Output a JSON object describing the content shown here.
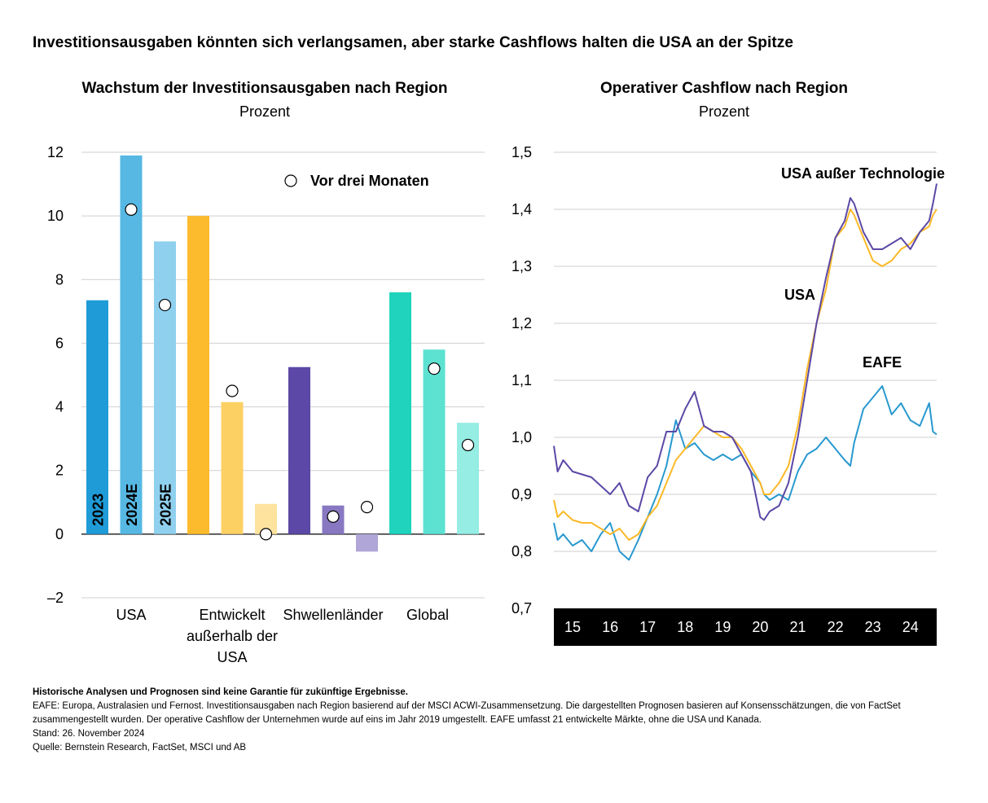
{
  "title": "Investitionsausgaben könnten sich verlangsamen, aber starke Cashflows halten die USA an der Spitze",
  "left_panel": {
    "title": "Wachstum der Investitionsausgaben nach Region",
    "subtitle": "Prozent"
  },
  "right_panel": {
    "title": "Operativer Cashflow nach Region",
    "subtitle": "Prozent"
  },
  "chart_data": [
    {
      "type": "bar",
      "title": "Wachstum der Investitionsausgaben nach Region",
      "subtitle": "Prozent",
      "ylim": [
        -2,
        12
      ],
      "yticks": [
        -2,
        0,
        2,
        4,
        6,
        8,
        10,
        12
      ],
      "ytick_labels": [
        "–2",
        "0",
        "2",
        "4",
        "6",
        "8",
        "10",
        "12"
      ],
      "grid": true,
      "legend": {
        "label": "Vor drei Monaten",
        "position": "top-right"
      },
      "bar_labels": [
        "2023",
        "2024E",
        "2025E"
      ],
      "groups": [
        {
          "label": [
            "USA"
          ],
          "bars": [
            {
              "year": "2023",
              "value": 7.35,
              "color": "#1f9bd7"
            },
            {
              "year": "2024E",
              "value": 11.9,
              "color": "#56b8e3",
              "prior": 10.2
            },
            {
              "year": "2025E",
              "value": 9.2,
              "color": "#8fd0ee",
              "prior": 7.2
            }
          ]
        },
        {
          "label": [
            "Entwickelt",
            "außerhalb der",
            "USA"
          ],
          "bars": [
            {
              "year": "2023",
              "value": 10.0,
              "color": "#fcbb2c"
            },
            {
              "year": "2024E",
              "value": 4.15,
              "color": "#fdd064",
              "prior": 4.5
            },
            {
              "year": "2025E",
              "value": 0.95,
              "color": "#fee39e",
              "prior": 0.0
            }
          ]
        },
        {
          "label": [
            "Shwellenländer"
          ],
          "bars": [
            {
              "year": "2023",
              "value": 5.25,
              "color": "#5c48a6"
            },
            {
              "year": "2024E",
              "value": 0.9,
              "color": "#8878c1",
              "prior": 0.55
            },
            {
              "year": "2025E",
              "value": -0.55,
              "color": "#b0a6d8",
              "prior": 0.85
            }
          ]
        },
        {
          "label": [
            "Global"
          ],
          "bars": [
            {
              "year": "2023",
              "value": 7.6,
              "color": "#1fd3bd"
            },
            {
              "year": "2024E",
              "value": 5.8,
              "color": "#5de2d2",
              "prior": 5.2
            },
            {
              "year": "2025E",
              "value": 3.5,
              "color": "#95ede3",
              "prior": 2.8
            }
          ]
        }
      ]
    },
    {
      "type": "line",
      "title": "Operativer Cashflow nach Region",
      "subtitle": "Prozent",
      "ylim": [
        0.7,
        1.5
      ],
      "yticks": [
        0.7,
        0.8,
        0.9,
        1.0,
        1.1,
        1.2,
        1.3,
        1.4,
        1.5
      ],
      "ytick_labels": [
        "0,7",
        "0,8",
        "0,9",
        "1,0",
        "1,1",
        "1,2",
        "1,3",
        "1,4",
        "1,5"
      ],
      "xlim": [
        2014.5,
        2024.7
      ],
      "xticks": [
        15,
        16,
        17,
        18,
        19,
        20,
        21,
        22,
        23,
        24
      ],
      "grid": true,
      "series": [
        {
          "name": "USA",
          "color": "#fbb928",
          "x": [
            2014.5,
            2014.6,
            2014.75,
            2015.0,
            2015.25,
            2015.5,
            2015.75,
            2016.0,
            2016.25,
            2016.5,
            2016.75,
            2017.0,
            2017.25,
            2017.5,
            2017.75,
            2018.0,
            2018.25,
            2018.5,
            2018.75,
            2019.0,
            2019.25,
            2019.5,
            2019.75,
            2020.0,
            2020.1,
            2020.25,
            2020.5,
            2020.75,
            2021.0,
            2021.25,
            2021.5,
            2021.75,
            2022.0,
            2022.25,
            2022.4,
            2022.5,
            2022.75,
            2023.0,
            2023.25,
            2023.5,
            2023.75,
            2024.0,
            2024.25,
            2024.5,
            2024.6,
            2024.7
          ],
          "y": [
            0.89,
            0.86,
            0.87,
            0.855,
            0.85,
            0.85,
            0.84,
            0.83,
            0.84,
            0.82,
            0.83,
            0.86,
            0.88,
            0.92,
            0.96,
            0.98,
            1.0,
            1.02,
            1.01,
            1.0,
            1.0,
            0.98,
            0.95,
            0.92,
            0.9,
            0.9,
            0.92,
            0.95,
            1.02,
            1.12,
            1.2,
            1.26,
            1.35,
            1.37,
            1.4,
            1.39,
            1.35,
            1.31,
            1.3,
            1.31,
            1.33,
            1.34,
            1.36,
            1.37,
            1.39,
            1.4
          ]
        },
        {
          "name": "USA außer Technologie",
          "color": "#5c48a6",
          "x": [
            2014.5,
            2014.6,
            2014.75,
            2015.0,
            2015.25,
            2015.5,
            2015.75,
            2016.0,
            2016.25,
            2016.5,
            2016.75,
            2017.0,
            2017.25,
            2017.5,
            2017.75,
            2018.0,
            2018.25,
            2018.5,
            2018.75,
            2019.0,
            2019.25,
            2019.5,
            2019.75,
            2020.0,
            2020.1,
            2020.25,
            2020.5,
            2020.75,
            2021.0,
            2021.25,
            2021.5,
            2021.75,
            2022.0,
            2022.25,
            2022.4,
            2022.5,
            2022.75,
            2023.0,
            2023.25,
            2023.5,
            2023.75,
            2024.0,
            2024.25,
            2024.5,
            2024.6,
            2024.7
          ],
          "y": [
            0.985,
            0.94,
            0.96,
            0.94,
            0.935,
            0.93,
            0.915,
            0.9,
            0.92,
            0.88,
            0.87,
            0.93,
            0.95,
            1.01,
            1.01,
            1.05,
            1.08,
            1.02,
            1.01,
            1.01,
            1.0,
            0.97,
            0.94,
            0.86,
            0.855,
            0.87,
            0.88,
            0.92,
            1.0,
            1.1,
            1.2,
            1.28,
            1.35,
            1.38,
            1.42,
            1.41,
            1.36,
            1.33,
            1.33,
            1.34,
            1.35,
            1.33,
            1.36,
            1.38,
            1.41,
            1.445
          ]
        },
        {
          "name": "EAFE",
          "color": "#2899cf",
          "x": [
            2014.5,
            2014.6,
            2014.75,
            2015.0,
            2015.25,
            2015.5,
            2015.75,
            2016.0,
            2016.25,
            2016.5,
            2016.75,
            2017.0,
            2017.25,
            2017.5,
            2017.75,
            2018.0,
            2018.25,
            2018.5,
            2018.75,
            2019.0,
            2019.25,
            2019.5,
            2019.75,
            2020.0,
            2020.1,
            2020.25,
            2020.5,
            2020.75,
            2021.0,
            2021.25,
            2021.5,
            2021.75,
            2022.0,
            2022.25,
            2022.4,
            2022.5,
            2022.75,
            2023.0,
            2023.25,
            2023.5,
            2023.75,
            2024.0,
            2024.25,
            2024.5,
            2024.6,
            2024.7
          ],
          "y": [
            0.85,
            0.82,
            0.83,
            0.81,
            0.82,
            0.8,
            0.83,
            0.85,
            0.8,
            0.785,
            0.82,
            0.86,
            0.9,
            0.95,
            1.03,
            0.98,
            0.99,
            0.97,
            0.96,
            0.97,
            0.96,
            0.97,
            0.94,
            0.92,
            0.9,
            0.89,
            0.9,
            0.89,
            0.94,
            0.97,
            0.98,
            1.0,
            0.98,
            0.96,
            0.95,
            0.99,
            1.05,
            1.07,
            1.09,
            1.04,
            1.06,
            1.03,
            1.02,
            1.06,
            1.01,
            1.005
          ]
        }
      ],
      "labels": [
        {
          "text": "USA außer Technologie",
          "series": "USA außer Technologie"
        },
        {
          "text": "USA",
          "series": "USA"
        },
        {
          "text": "EAFE",
          "series": "EAFE"
        }
      ]
    }
  ],
  "footnotes": {
    "disclaimer": "Historische Analysen und Prognosen sind keine Garantie für zukünftige Ergebnisse.",
    "line1": "EAFE: Europa, Australasien und Fernost. Investitionsausgaben nach Region basierend auf der MSCI ACWI-Zusammensetzung. Die dargestellten Prognosen basieren auf Konsensschätzungen, die von FactSet",
    "line2": "zusammengestellt wurden. Der operative Cashflow der Unternehmen wurde auf eins im Jahr 2019 umgestellt. EAFE umfasst 21 entwickelte Märkte, ohne die USA und Kanada.",
    "date": "Stand: 26. November 2024",
    "source": "Quelle: Bernstein Research, FactSet, MSCI und AB"
  }
}
